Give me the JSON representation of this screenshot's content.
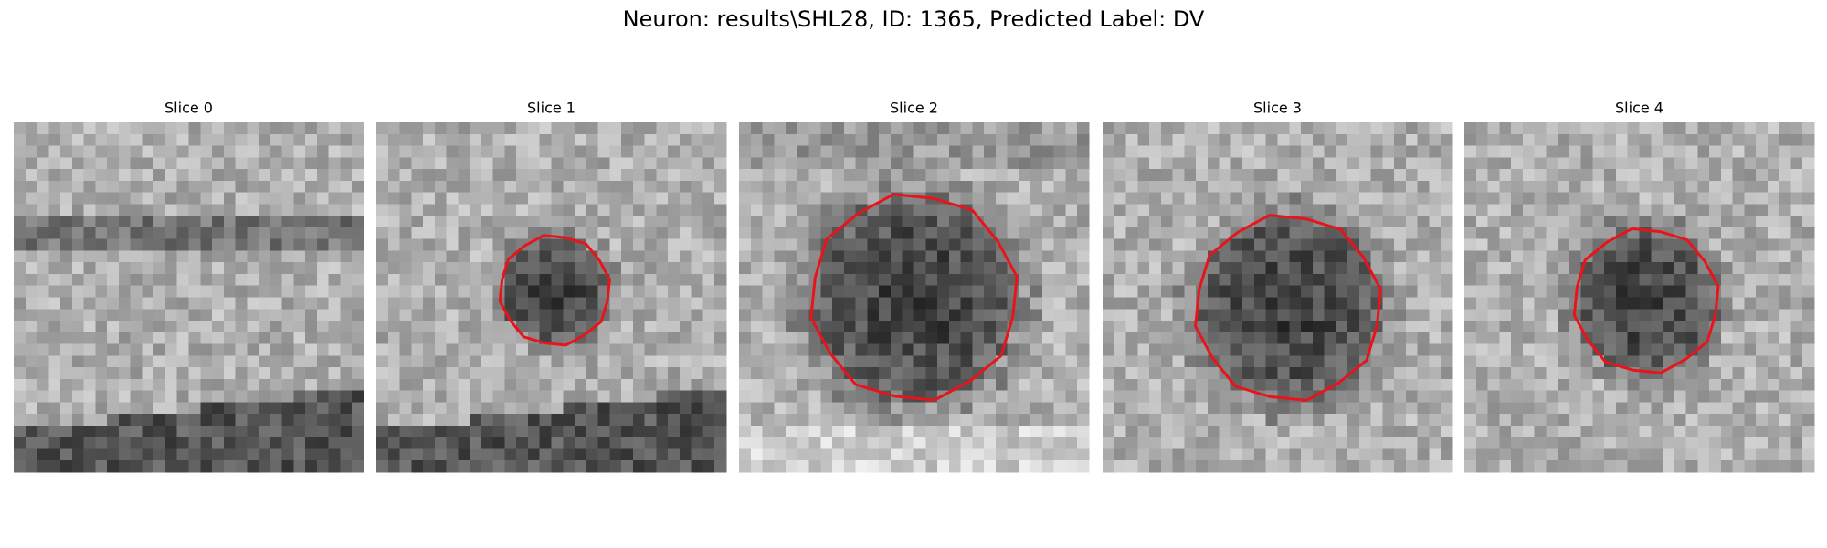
{
  "title": "Neuron: results\\SHL28, ID: 1365, Predicted Label: DV",
  "panels": [
    {
      "title": "Slice 0"
    },
    {
      "title": "Slice 1"
    },
    {
      "title": "Slice 2"
    },
    {
      "title": "Slice 3"
    },
    {
      "title": "Slice 4"
    }
  ]
}
